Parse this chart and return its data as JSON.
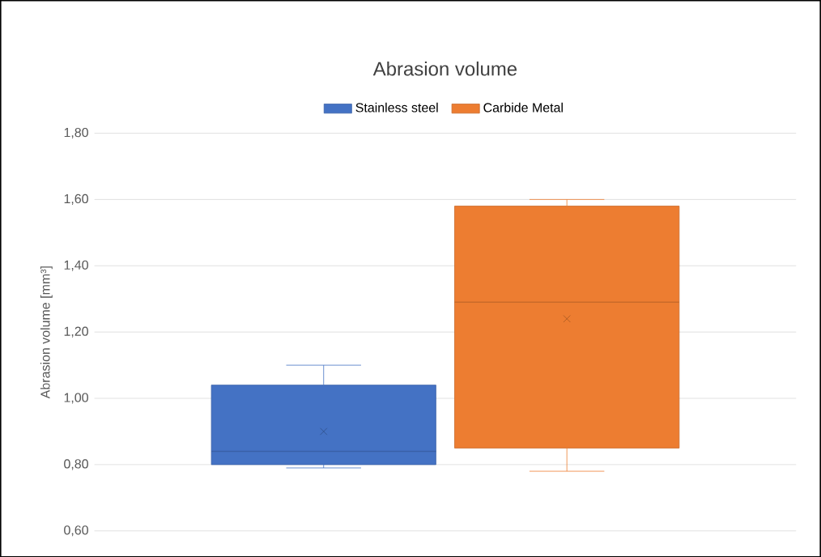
{
  "chart_data": {
    "type": "box",
    "title": "Abrasion volume",
    "ylabel": "Abrasion volume [mm³]",
    "categories": [
      null
    ],
    "series": [
      {
        "name": "Stainless steel",
        "color": "#4472c4",
        "boxes": [
          {
            "low": 0.79,
            "q1": 0.8,
            "median": 0.84,
            "q3": 1.04,
            "high": 1.1,
            "mean": 0.9
          }
        ]
      },
      {
        "name": "Carbide Metal",
        "color": "#ed7d31",
        "boxes": [
          {
            "low": 0.78,
            "q1": 0.85,
            "median": 1.29,
            "q3": 1.58,
            "high": 1.6,
            "mean": 1.24
          }
        ]
      }
    ],
    "ylim": [
      0.6,
      1.8
    ],
    "yticks": [
      {
        "value": 0.6,
        "label": "0,60"
      },
      {
        "value": 0.8,
        "label": "0,80"
      },
      {
        "value": 1.0,
        "label": "1,00"
      },
      {
        "value": 1.2,
        "label": "1,20"
      },
      {
        "value": 1.4,
        "label": "1,40"
      },
      {
        "value": 1.6,
        "label": "1,60"
      },
      {
        "value": 1.8,
        "label": "1,80"
      }
    ],
    "grid": "y",
    "legend": "top"
  }
}
